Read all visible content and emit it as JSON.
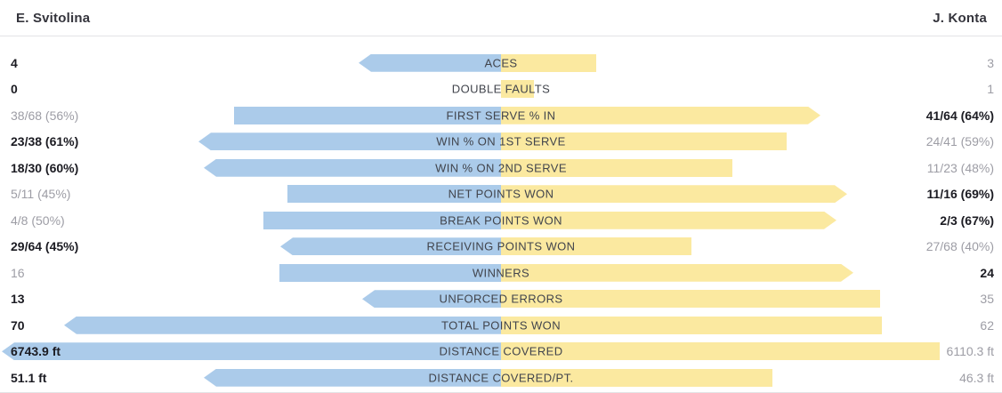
{
  "header": {
    "left_player": "E. Svitolina",
    "right_player": "J. Konta"
  },
  "colors": {
    "left_bar": "#abcbea",
    "right_bar": "#fbe9a0",
    "bold_text": "#1b1b22",
    "muted_text": "#9d9da5",
    "label_text": "#41444c",
    "divider": "#e3e3e6",
    "background": "#ffffff"
  },
  "chart_data": {
    "type": "bar",
    "orientation": "diverging-horizontal",
    "title": "",
    "legend_position": "none",
    "grid": false,
    "categories": [
      "ACES",
      "DOUBLE FAULTS",
      "FIRST SERVE % IN",
      "WIN % ON 1ST SERVE",
      "WIN % ON 2ND SERVE",
      "NET POINTS WON",
      "BREAK POINTS WON",
      "RECEIVING POINTS WON",
      "WINNERS",
      "UNFORCED ERRORS",
      "TOTAL POINTS WON",
      "DISTANCE COVERED",
      "DISTANCE COVERED/PT."
    ],
    "series": [
      {
        "name": "E. Svitolina",
        "side": "left",
        "values": [
          4,
          0,
          56,
          61,
          60,
          45,
          50,
          45,
          16,
          13,
          70,
          6743.9,
          51.1
        ],
        "display": [
          "4",
          "0",
          "38/68 (56%)",
          "23/38 (61%)",
          "18/30 (60%)",
          "5/11 (45%)",
          "4/8 (50%)",
          "29/64 (45%)",
          "16",
          "13",
          "70",
          "6743.9 ft",
          "51.1 ft"
        ]
      },
      {
        "name": "J. Konta",
        "side": "right",
        "values": [
          3,
          1,
          64,
          59,
          48,
          69,
          67,
          40,
          24,
          35,
          62,
          6110.3,
          46.3
        ],
        "display": [
          "3",
          "1",
          "41/64 (64%)",
          "24/41 (59%)",
          "11/23 (48%)",
          "11/16 (69%)",
          "2/3 (67%)",
          "27/68 (40%)",
          "24",
          "35",
          "62",
          "6110.3 ft",
          "46.3 ft"
        ]
      }
    ]
  },
  "rows": [
    {
      "label": "ACES",
      "left_text": "4",
      "left_bold": true,
      "right_text": "3",
      "right_bold": false,
      "arrow": "left",
      "left_w": 160,
      "right_w": 107
    },
    {
      "label": "DOUBLE FAULTS",
      "left_text": "0",
      "left_bold": true,
      "right_text": "1",
      "right_bold": false,
      "arrow": "none",
      "left_w": 0,
      "right_w": 37
    },
    {
      "label": "FIRST SERVE % IN",
      "left_text": "38/68 (56%)",
      "left_bold": false,
      "right_text": "41/64 (64%)",
      "right_bold": true,
      "arrow": "right",
      "left_w": 300,
      "right_w": 359
    },
    {
      "label": "WIN % ON 1ST SERVE",
      "left_text": "23/38 (61%)",
      "left_bold": true,
      "right_text": "24/41 (59%)",
      "right_bold": false,
      "arrow": "left",
      "left_w": 340,
      "right_w": 321
    },
    {
      "label": "WIN % ON 2ND SERVE",
      "left_text": "18/30 (60%)",
      "left_bold": true,
      "right_text": "11/23 (48%)",
      "right_bold": false,
      "arrow": "left",
      "left_w": 334,
      "right_w": 260
    },
    {
      "label": "NET POINTS WON",
      "left_text": "5/11 (45%)",
      "left_bold": false,
      "right_text": "11/16 (69%)",
      "right_bold": true,
      "arrow": "right",
      "left_w": 240,
      "right_w": 389
    },
    {
      "label": "BREAK POINTS WON",
      "left_text": "4/8 (50%)",
      "left_bold": false,
      "right_text": "2/3 (67%)",
      "right_bold": true,
      "arrow": "right",
      "left_w": 267,
      "right_w": 377
    },
    {
      "label": "RECEIVING POINTS WON",
      "left_text": "29/64 (45%)",
      "left_bold": true,
      "right_text": "27/68 (40%)",
      "right_bold": false,
      "arrow": "left",
      "left_w": 248,
      "right_w": 214
    },
    {
      "label": "WINNERS",
      "left_text": "16",
      "left_bold": false,
      "right_text": "24",
      "right_bold": true,
      "arrow": "right",
      "left_w": 249,
      "right_w": 396
    },
    {
      "label": "UNFORCED ERRORS",
      "left_text": "13",
      "left_bold": true,
      "right_text": "35",
      "right_bold": false,
      "arrow": "left",
      "left_w": 156,
      "right_w": 426
    },
    {
      "label": "TOTAL POINTS WON",
      "left_text": "70",
      "left_bold": true,
      "right_text": "62",
      "right_bold": false,
      "arrow": "left",
      "left_w": 491,
      "right_w": 428
    },
    {
      "label": "DISTANCE COVERED",
      "left_text": "6743.9 ft",
      "left_bold": true,
      "right_text": "6110.3 ft",
      "right_bold": false,
      "arrow": "left",
      "left_w": 561,
      "right_w": 493
    },
    {
      "label": "DISTANCE COVERED/PT.",
      "left_text": "51.1 ft",
      "left_bold": true,
      "right_text": "46.3 ft",
      "right_bold": false,
      "arrow": "left",
      "left_w": 334,
      "right_w": 305
    }
  ]
}
